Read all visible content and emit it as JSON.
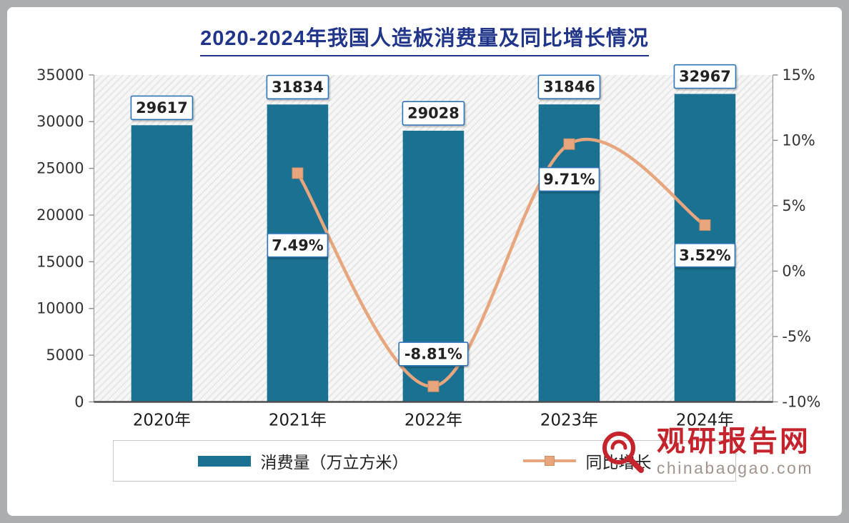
{
  "watermark": {
    "name": "观研报告网",
    "domain": "chinabaogao.com"
  },
  "chart_data": {
    "type": "bar",
    "combo": "bar+line",
    "title": "2020-2024年我国人造板消费量及同比增长情况",
    "title_color": "#21368b",
    "categories": [
      "2020年",
      "2021年",
      "2022年",
      "2023年",
      "2024年"
    ],
    "series": [
      {
        "name": "消费量（万立方米）",
        "type": "bar",
        "axis": "left",
        "color": "#1b7191",
        "values": [
          29617,
          31834,
          29028,
          31846,
          32967
        ],
        "data_labels": [
          "29617",
          "31834",
          "29028",
          "31846",
          "32967"
        ]
      },
      {
        "name": "同比增长",
        "type": "line",
        "axis": "right",
        "color": "#e7a67d",
        "marker": "square",
        "values": [
          null,
          7.49,
          -8.81,
          9.71,
          3.52
        ],
        "data_labels": [
          null,
          "7.49%",
          "-8.81%",
          "9.71%",
          "3.52%"
        ],
        "label_dy": [
          null,
          85,
          -62,
          33,
          26
        ]
      }
    ],
    "left_axis": {
      "min": 0,
      "max": 35000,
      "step": 5000,
      "ticks": [
        "35000",
        "30000",
        "25000",
        "20000",
        "15000",
        "10000",
        "5000",
        "0"
      ]
    },
    "right_axis": {
      "min": -10,
      "max": 15,
      "step": 5,
      "ticks": [
        "15%",
        "10%",
        "5%",
        "0%",
        "-5%",
        "-10%"
      ]
    },
    "legend_position": "bottom",
    "grid": false,
    "plot_hatch": true,
    "label_box_border": "#2f74b8"
  }
}
